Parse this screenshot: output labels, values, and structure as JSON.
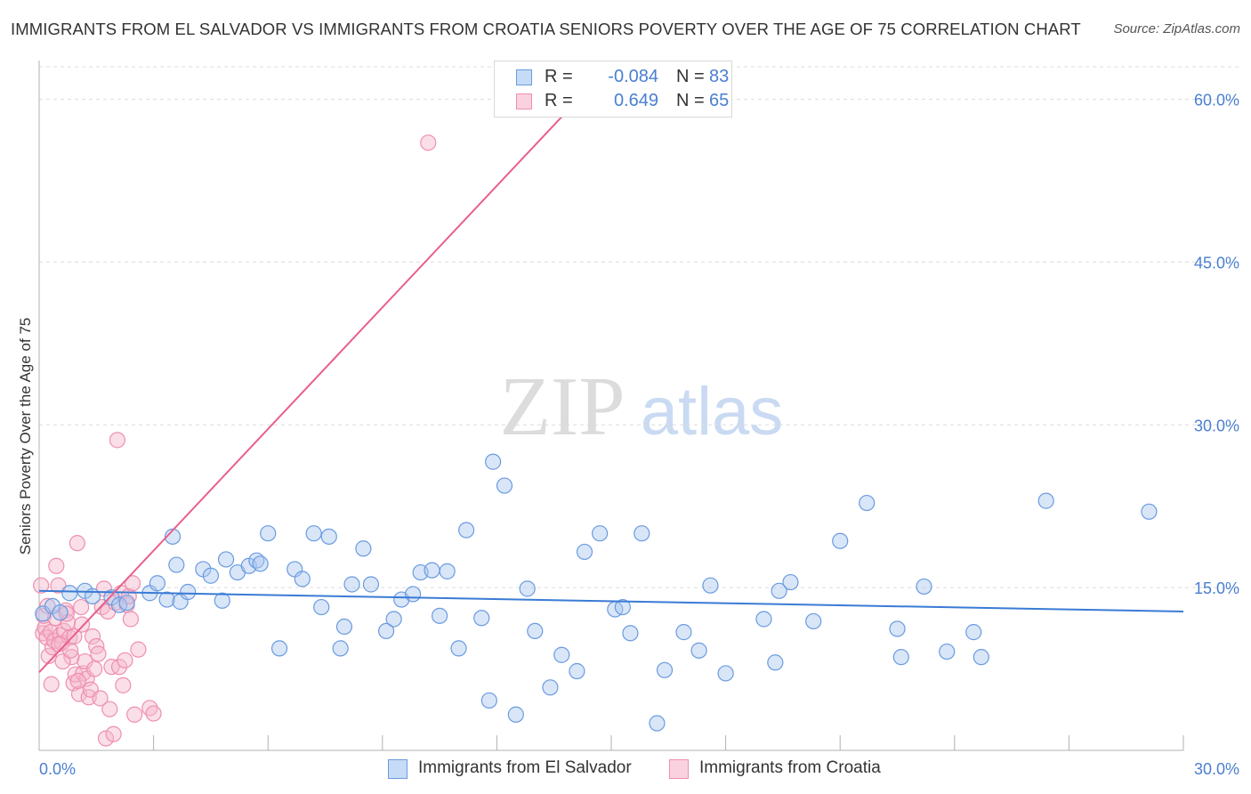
{
  "title": "IMMIGRANTS FROM EL SALVADOR VS IMMIGRANTS FROM CROATIA SENIORS POVERTY OVER THE AGE OF 75 CORRELATION CHART",
  "source": "Source: ZipAtlas.com",
  "watermark": {
    "zip": "ZIP",
    "atlas": "atlas"
  },
  "colors": {
    "blue_fill": "#aac8ef",
    "blue_stroke": "#6a9be0",
    "blue_line": "#3a7bd5",
    "pink_fill": "#f5b8cc",
    "pink_stroke": "#ef8fae",
    "pink_line": "#e8608c",
    "tick_label": "#4a7fd0",
    "grid": "#dcdcdc"
  },
  "legend_top": [
    {
      "swatch": "blue",
      "r_label": "R =",
      "r_value": "-0.084",
      "n_label": "N =",
      "n_value": "83"
    },
    {
      "swatch": "pink",
      "r_label": "R =",
      "r_value": "0.649",
      "n_label": "N =",
      "n_value": "65"
    }
  ],
  "chart_data": {
    "type": "scatter",
    "title": "IMMIGRANTS FROM EL SALVADOR VS IMMIGRANTS FROM CROATIA SENIORS POVERTY OVER THE AGE OF 75 CORRELATION CHART",
    "xlabel": "",
    "ylabel": "Seniors Poverty Over the Age of 75",
    "xlim": [
      0,
      30
    ],
    "ylim": [
      0,
      63
    ],
    "x_tick_labels": [
      "0.0%",
      "30.0%"
    ],
    "y_ticks": [
      15,
      30,
      45,
      60
    ],
    "y_tick_labels": [
      "15.0%",
      "30.0%",
      "45.0%",
      "60.0%"
    ],
    "grid": true,
    "legend_position": "bottom",
    "series": [
      {
        "name": "Immigrants from El Salvador",
        "color": "#aac8ef",
        "trend": {
          "x": [
            0.0,
            30.0
          ],
          "y": [
            14.7,
            12.8
          ]
        },
        "points": [
          [
            0.1,
            12.6
          ],
          [
            0.35,
            13.3
          ],
          [
            0.55,
            12.7
          ],
          [
            0.8,
            14.5
          ],
          [
            1.2,
            14.7
          ],
          [
            1.4,
            14.2
          ],
          [
            1.9,
            14.1
          ],
          [
            2.1,
            13.4
          ],
          [
            2.3,
            13.6
          ],
          [
            2.9,
            14.5
          ],
          [
            3.1,
            15.4
          ],
          [
            3.35,
            13.9
          ],
          [
            3.5,
            19.7
          ],
          [
            3.6,
            17.1
          ],
          [
            3.7,
            13.7
          ],
          [
            3.9,
            14.6
          ],
          [
            4.3,
            16.7
          ],
          [
            4.5,
            16.1
          ],
          [
            4.8,
            13.8
          ],
          [
            4.9,
            17.6
          ],
          [
            5.2,
            16.4
          ],
          [
            5.5,
            17.0
          ],
          [
            5.7,
            17.5
          ],
          [
            5.8,
            17.2
          ],
          [
            6.0,
            20.0
          ],
          [
            6.3,
            9.4
          ],
          [
            6.7,
            16.7
          ],
          [
            6.9,
            15.8
          ],
          [
            7.2,
            20.0
          ],
          [
            7.4,
            13.2
          ],
          [
            7.6,
            19.7
          ],
          [
            7.9,
            9.4
          ],
          [
            8.0,
            11.4
          ],
          [
            8.2,
            15.3
          ],
          [
            8.5,
            18.6
          ],
          [
            8.7,
            15.3
          ],
          [
            9.1,
            11.0
          ],
          [
            9.3,
            12.1
          ],
          [
            9.5,
            13.9
          ],
          [
            9.8,
            14.4
          ],
          [
            10.0,
            16.4
          ],
          [
            10.3,
            16.6
          ],
          [
            10.5,
            12.4
          ],
          [
            10.7,
            16.5
          ],
          [
            11.0,
            9.4
          ],
          [
            11.2,
            20.3
          ],
          [
            11.6,
            12.2
          ],
          [
            11.8,
            4.6
          ],
          [
            11.9,
            26.6
          ],
          [
            12.2,
            24.4
          ],
          [
            12.5,
            3.3
          ],
          [
            12.8,
            14.9
          ],
          [
            13.0,
            11.0
          ],
          [
            13.4,
            5.8
          ],
          [
            13.7,
            8.8
          ],
          [
            14.1,
            7.3
          ],
          [
            14.3,
            18.3
          ],
          [
            14.7,
            20.0
          ],
          [
            15.1,
            13.0
          ],
          [
            15.3,
            13.2
          ],
          [
            15.5,
            10.8
          ],
          [
            15.8,
            20.0
          ],
          [
            16.2,
            2.5
          ],
          [
            16.4,
            7.4
          ],
          [
            16.9,
            10.9
          ],
          [
            17.3,
            9.2
          ],
          [
            17.6,
            15.2
          ],
          [
            18.0,
            7.1
          ],
          [
            19.0,
            12.1
          ],
          [
            19.3,
            8.1
          ],
          [
            19.4,
            14.7
          ],
          [
            19.7,
            15.5
          ],
          [
            20.3,
            11.9
          ],
          [
            21.0,
            19.3
          ],
          [
            21.7,
            22.8
          ],
          [
            22.5,
            11.2
          ],
          [
            22.6,
            8.6
          ],
          [
            23.2,
            15.1
          ],
          [
            23.8,
            9.1
          ],
          [
            24.5,
            10.9
          ],
          [
            24.7,
            8.6
          ],
          [
            26.4,
            23.0
          ],
          [
            29.1,
            22.0
          ]
        ]
      },
      {
        "name": "Immigrants from Croatia",
        "color": "#f5b8cc",
        "trend": {
          "x": [
            0.0,
            14.4
          ],
          "y": [
            7.2,
            61.0
          ]
        },
        "points": [
          [
            0.05,
            15.2
          ],
          [
            0.1,
            10.8
          ],
          [
            0.15,
            11.3
          ],
          [
            0.2,
            10.4
          ],
          [
            0.25,
            8.7
          ],
          [
            0.3,
            10.9
          ],
          [
            0.35,
            9.5
          ],
          [
            0.4,
            10.1
          ],
          [
            0.45,
            17.0
          ],
          [
            0.5,
            15.2
          ],
          [
            0.55,
            10.6
          ],
          [
            0.6,
            9.9
          ],
          [
            0.65,
            11.0
          ],
          [
            0.7,
            12.9
          ],
          [
            0.75,
            11.8
          ],
          [
            0.8,
            10.4
          ],
          [
            0.85,
            8.6
          ],
          [
            0.9,
            6.2
          ],
          [
            0.95,
            7.0
          ],
          [
            1.0,
            19.1
          ],
          [
            1.05,
            5.2
          ],
          [
            1.1,
            13.2
          ],
          [
            1.15,
            7.1
          ],
          [
            1.2,
            8.2
          ],
          [
            1.25,
            6.6
          ],
          [
            1.3,
            4.9
          ],
          [
            1.35,
            5.6
          ],
          [
            1.4,
            10.5
          ],
          [
            1.45,
            7.5
          ],
          [
            1.5,
            9.6
          ],
          [
            1.55,
            8.9
          ],
          [
            1.6,
            4.8
          ],
          [
            1.65,
            13.2
          ],
          [
            1.7,
            14.9
          ],
          [
            1.75,
            1.1
          ],
          [
            1.8,
            12.8
          ],
          [
            1.85,
            3.8
          ],
          [
            1.9,
            7.7
          ],
          [
            1.95,
            1.5
          ],
          [
            2.0,
            13.6
          ],
          [
            2.05,
            28.6
          ],
          [
            2.1,
            7.7
          ],
          [
            2.15,
            14.5
          ],
          [
            2.2,
            6.0
          ],
          [
            2.25,
            8.3
          ],
          [
            2.3,
            13.4
          ],
          [
            2.35,
            14.2
          ],
          [
            2.4,
            12.1
          ],
          [
            2.45,
            15.4
          ],
          [
            2.5,
            3.3
          ],
          [
            0.12,
            12.4
          ],
          [
            0.22,
            13.3
          ],
          [
            0.32,
            6.1
          ],
          [
            0.42,
            12.2
          ],
          [
            0.52,
            9.8
          ],
          [
            0.62,
            8.2
          ],
          [
            0.72,
            12.6
          ],
          [
            0.82,
            9.2
          ],
          [
            0.92,
            10.5
          ],
          [
            1.02,
            6.4
          ],
          [
            1.12,
            11.6
          ],
          [
            2.6,
            9.3
          ],
          [
            2.9,
            3.9
          ],
          [
            3.0,
            3.4
          ],
          [
            10.2,
            56.0
          ]
        ]
      }
    ]
  },
  "legend_bottom": [
    {
      "swatch": "blue",
      "label": "Immigrants from El Salvador"
    },
    {
      "swatch": "pink",
      "label": "Immigrants from Croatia"
    }
  ]
}
